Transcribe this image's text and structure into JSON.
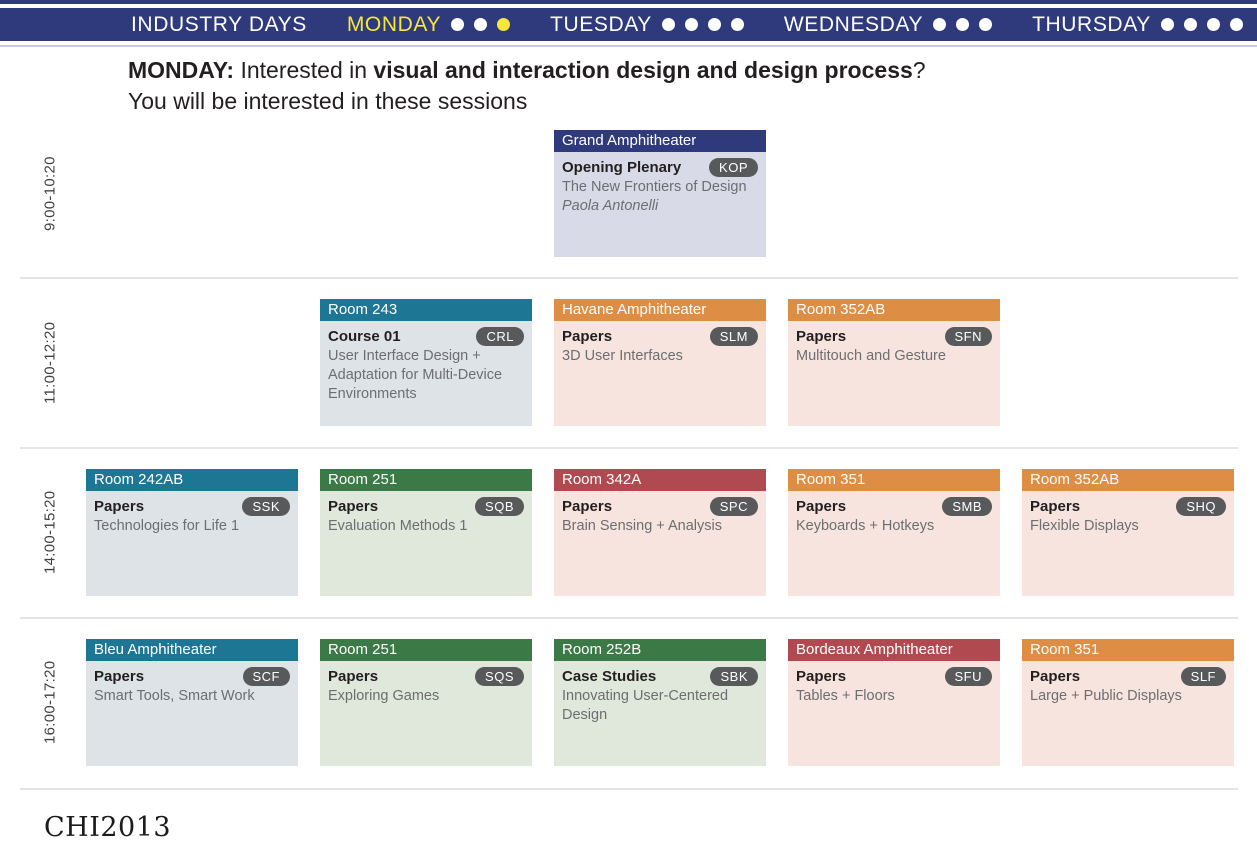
{
  "nav": {
    "items": [
      {
        "label": "INDUSTRY DAYS",
        "label_color": "#ffffff",
        "dots": []
      },
      {
        "label": "MONDAY",
        "label_color": "#f5e73b",
        "dots": [
          "#ffffff",
          "#ffffff",
          "#f5e73b"
        ]
      },
      {
        "label": "TUESDAY",
        "label_color": "#ffffff",
        "dots": [
          "#ffffff",
          "#ffffff",
          "#ffffff",
          "#ffffff"
        ]
      },
      {
        "label": "WEDNESDAY",
        "label_color": "#ffffff",
        "dots": [
          "#ffffff",
          "#ffffff",
          "#ffffff"
        ]
      },
      {
        "label": "THURSDAY",
        "label_color": "#ffffff",
        "dots": [
          "#ffffff",
          "#ffffff",
          "#ffffff",
          "#ffffff"
        ]
      }
    ]
  },
  "title": {
    "day": "MONDAY: ",
    "intro": "Interested in ",
    "topic": "visual and interaction design and design process",
    "qmark": "?",
    "line2": "You will be interested in these sessions"
  },
  "rows": [
    {
      "time": "9:00-10:20",
      "sessions": [
        {
          "col": 2,
          "room": "Grand Amphitheater",
          "theme": "navy",
          "type": "Opening Plenary",
          "code": "KOP",
          "title": "The New Frontiers of Design",
          "speaker": "Paola Antonelli"
        }
      ]
    },
    {
      "time": "11:00-12:20",
      "sessions": [
        {
          "col": 1,
          "room": "Room 243",
          "theme": "teal",
          "type": "Course 01",
          "code": "CRL",
          "title": "User Interface Design + Adaptation for Multi-Device Environments"
        },
        {
          "col": 2,
          "room": "Havane Amphitheater",
          "theme": "orange",
          "type": "Papers",
          "code": "SLM",
          "title": "3D User Interfaces"
        },
        {
          "col": 3,
          "room": "Room 352AB",
          "theme": "orange",
          "type": "Papers",
          "code": "SFN",
          "title": "Multitouch and Gesture"
        }
      ]
    },
    {
      "time": "14:00-15:20",
      "sessions": [
        {
          "col": 0,
          "room": "Room 242AB",
          "theme": "teal",
          "type": "Papers",
          "code": "SSK",
          "title": "Technologies for Life 1"
        },
        {
          "col": 1,
          "room": "Room 251",
          "theme": "green",
          "type": "Papers",
          "code": "SQB",
          "title": "Evaluation Methods 1"
        },
        {
          "col": 2,
          "room": "Room 342A",
          "theme": "red",
          "type": "Papers",
          "code": "SPC",
          "title": "Brain Sensing + Analysis"
        },
        {
          "col": 3,
          "room": "Room 351",
          "theme": "orange",
          "type": "Papers",
          "code": "SMB",
          "title": "Keyboards + Hotkeys"
        },
        {
          "col": 4,
          "room": "Room 352AB",
          "theme": "orange",
          "type": "Papers",
          "code": "SHQ",
          "title": "Flexible Displays"
        }
      ]
    },
    {
      "time": "16:00-17:20",
      "sessions": [
        {
          "col": 0,
          "room": "Bleu Amphitheater",
          "theme": "teal",
          "type": "Papers",
          "code": "SCF",
          "title": "Smart Tools, Smart Work"
        },
        {
          "col": 1,
          "room": "Room 251",
          "theme": "green",
          "type": "Papers",
          "code": "SQS",
          "title": "Exploring Games"
        },
        {
          "col": 2,
          "room": "Room 252B",
          "theme": "green",
          "type": "Case Studies",
          "code": "SBK",
          "title": "Innovating User-Centered Design"
        },
        {
          "col": 3,
          "room": "Bordeaux Amphitheater",
          "theme": "red",
          "type": "Papers",
          "code": "SFU",
          "title": "Tables + Floors"
        },
        {
          "col": 4,
          "room": "Room 351",
          "theme": "orange",
          "type": "Papers",
          "code": "SLF",
          "title": "Large + Public Displays"
        }
      ]
    }
  ],
  "footer": {
    "logo": "CHI2013"
  },
  "colors": {
    "navy": "#2f3a7c",
    "teal": "#1d7694",
    "orange": "#dd8e44",
    "green": "#3b7a46",
    "red": "#b04a50",
    "navy_body": "#d8dbe7",
    "teal_body": "#dee3e7",
    "orange_body": "#f7e4de",
    "green_body": "#e0e7db",
    "red_body": "#f7e4de",
    "badge": "#58595b",
    "nav_bar": "#2f3a7c",
    "highlight_yellow": "#f5e73b"
  }
}
